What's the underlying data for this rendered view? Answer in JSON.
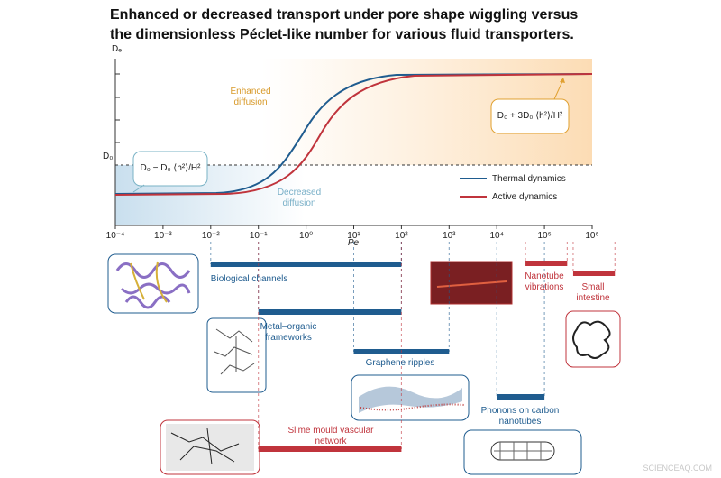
{
  "chart_data": {
    "type": "range",
    "title": "Enhanced or decreased transport under pore shape wiggling versus the dimensionless Péclet-like number for various fluid transporters.",
    "x_label": "Pe",
    "y_label": "Dₑ",
    "reference_label": "D₀",
    "log_x": true,
    "xlim": [
      0.0001,
      1000000
    ],
    "xticks": [
      {
        "value": 0.0001,
        "label": "10⁻⁴"
      },
      {
        "value": 0.001,
        "label": "10⁻³"
      },
      {
        "value": 0.01,
        "label": "10⁻²"
      },
      {
        "value": 0.1,
        "label": "10⁻¹"
      },
      {
        "value": 1,
        "label": "10⁰"
      },
      {
        "value": 10,
        "label": "10¹"
      },
      {
        "value": 100,
        "label": "10²"
      },
      {
        "value": 1000,
        "label": "10³"
      },
      {
        "value": 10000,
        "label": "10⁴"
      },
      {
        "value": 100000,
        "label": "10⁵"
      },
      {
        "value": 1000000,
        "label": "10⁶"
      }
    ],
    "annotations": [
      "Enhanced diffusion",
      "Decreased diffusion",
      "D₀ − D₀ ⟨h²⟩/H²",
      "D₀ + 3D₀ ⟨h²⟩/H²"
    ],
    "series": [
      {
        "name": "Thermal dynamics",
        "color": "#1f5c8f"
      },
      {
        "name": "Active dynamics",
        "color": "#c0343c"
      }
    ],
    "ranges": [
      {
        "name": "Biological channels",
        "start": 0.01,
        "end": 100,
        "color": "#1f5c8f"
      },
      {
        "name": "Metal–organic frameworks",
        "start": 0.1,
        "end": 100,
        "color": "#1f5c8f"
      },
      {
        "name": "Graphene ripples",
        "start": 10,
        "end": 1000,
        "color": "#1f5c8f"
      },
      {
        "name": "Slime mould vascular network",
        "start": 0.1,
        "end": 100,
        "color": "#c0343c"
      },
      {
        "name": "Phonons on carbon nanotubes",
        "start": 10000,
        "end": 100000,
        "color": "#1f5c8f"
      },
      {
        "name": "Nanotube vibrations",
        "start": 40000,
        "end": 300000,
        "color": "#c0343c"
      },
      {
        "name": "Small intestine",
        "start": 400000,
        "end": 3000000,
        "color": "#c0343c"
      }
    ],
    "watermark": "SCIENCEAQ.COM"
  }
}
